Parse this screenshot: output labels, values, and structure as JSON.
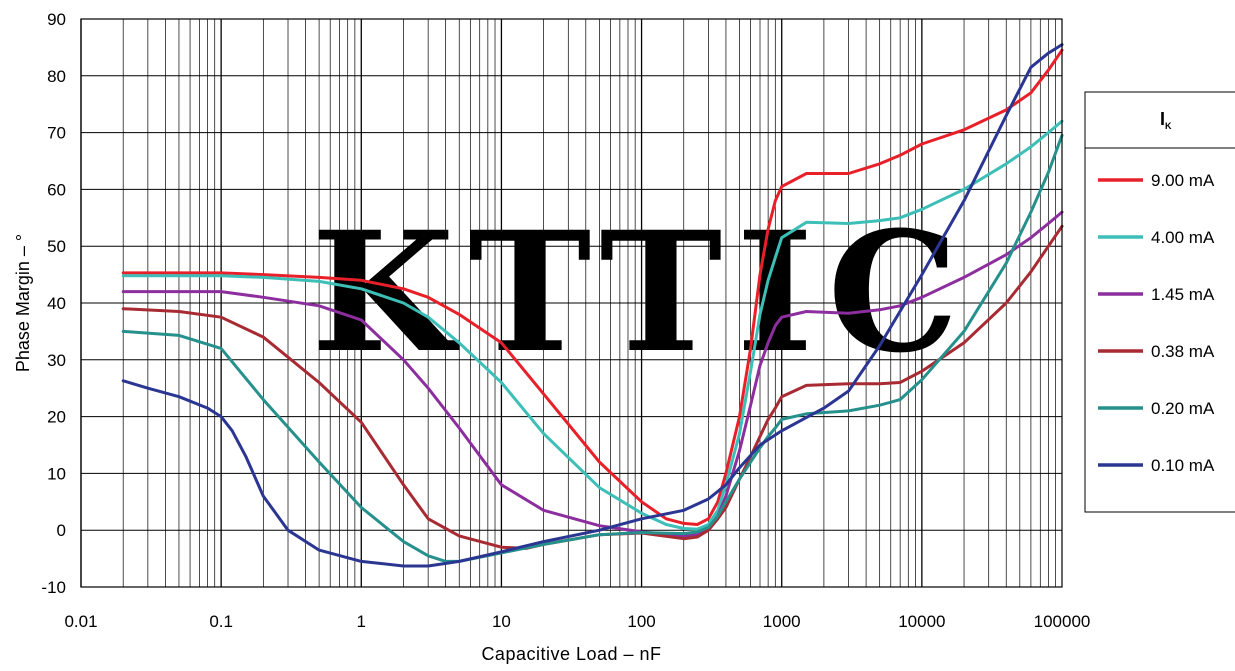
{
  "chart_data": {
    "type": "line",
    "title": "",
    "xlabel": "Capacitive Load – nF",
    "ylabel": "Phase Margin – °",
    "x_scale": "log",
    "xlim": [
      0.01,
      100000
    ],
    "ylim": [
      -10,
      90
    ],
    "grid": true,
    "x_ticks": [
      "0.01",
      "0.1",
      "1",
      "10",
      "100",
      "1000",
      "10000",
      "100000"
    ],
    "y_ticks": [
      "-10",
      "0",
      "10",
      "20",
      "30",
      "40",
      "50",
      "60",
      "70",
      "80",
      "90"
    ],
    "legend": {
      "title": "I",
      "title_sub": "K",
      "placement": "right"
    },
    "watermark": "KTTIC",
    "watermark_color": "#f5b3b9",
    "series": [
      {
        "name": "9.00 mA",
        "color": "#e8202a",
        "points": [
          [
            0.02,
            45.3
          ],
          [
            0.05,
            45.3
          ],
          [
            0.1,
            45.3
          ],
          [
            0.2,
            45
          ],
          [
            0.5,
            44.5
          ],
          [
            1,
            44
          ],
          [
            2,
            42.5
          ],
          [
            3,
            41
          ],
          [
            5,
            38
          ],
          [
            10,
            33
          ],
          [
            20,
            24
          ],
          [
            50,
            12
          ],
          [
            100,
            5
          ],
          [
            150,
            2
          ],
          [
            200,
            1.2
          ],
          [
            250,
            1
          ],
          [
            300,
            2
          ],
          [
            350,
            5
          ],
          [
            400,
            10
          ],
          [
            500,
            20
          ],
          [
            600,
            32
          ],
          [
            700,
            45
          ],
          [
            800,
            53
          ],
          [
            900,
            58
          ],
          [
            1000,
            60.5
          ],
          [
            1500,
            62.8
          ],
          [
            3000,
            62.8
          ],
          [
            5000,
            64.5
          ],
          [
            7000,
            66
          ],
          [
            10000,
            68
          ],
          [
            20000,
            70.5
          ],
          [
            40000,
            74
          ],
          [
            60000,
            77
          ],
          [
            80000,
            81
          ],
          [
            100000,
            84.5
          ]
        ]
      },
      {
        "name": "4.00 mA",
        "color": "#3dbfb8",
        "points": [
          [
            0.02,
            44.8
          ],
          [
            0.05,
            44.8
          ],
          [
            0.1,
            44.8
          ],
          [
            0.2,
            44.5
          ],
          [
            0.5,
            43.8
          ],
          [
            1,
            42.5
          ],
          [
            2,
            40
          ],
          [
            3,
            37.5
          ],
          [
            5,
            33
          ],
          [
            10,
            26
          ],
          [
            20,
            17
          ],
          [
            50,
            7.5
          ],
          [
            100,
            3
          ],
          [
            150,
            1
          ],
          [
            200,
            0.3
          ],
          [
            250,
            0.2
          ],
          [
            300,
            1
          ],
          [
            350,
            3.5
          ],
          [
            400,
            8
          ],
          [
            500,
            17
          ],
          [
            600,
            28
          ],
          [
            700,
            38
          ],
          [
            800,
            44
          ],
          [
            900,
            48
          ],
          [
            1000,
            51.5
          ],
          [
            1500,
            54.2
          ],
          [
            3000,
            54
          ],
          [
            5000,
            54.5
          ],
          [
            7000,
            55
          ],
          [
            10000,
            56.5
          ],
          [
            20000,
            60
          ],
          [
            40000,
            64.5
          ],
          [
            60000,
            67.5
          ],
          [
            80000,
            70
          ],
          [
            100000,
            72
          ]
        ]
      },
      {
        "name": "1.45 mA",
        "color": "#8c2e9e",
        "points": [
          [
            0.02,
            42
          ],
          [
            0.05,
            42
          ],
          [
            0.1,
            42
          ],
          [
            0.2,
            41
          ],
          [
            0.5,
            39.5
          ],
          [
            1,
            37
          ],
          [
            2,
            30
          ],
          [
            3,
            25
          ],
          [
            5,
            18
          ],
          [
            10,
            8
          ],
          [
            20,
            3.5
          ],
          [
            50,
            0.8
          ],
          [
            100,
            -0.3
          ],
          [
            200,
            -1
          ],
          [
            250,
            -0.8
          ],
          [
            300,
            0
          ],
          [
            350,
            2.5
          ],
          [
            400,
            6
          ],
          [
            500,
            14
          ],
          [
            600,
            22
          ],
          [
            700,
            29
          ],
          [
            800,
            33
          ],
          [
            900,
            36
          ],
          [
            1000,
            37.5
          ],
          [
            1500,
            38.5
          ],
          [
            3000,
            38.2
          ],
          [
            5000,
            38.8
          ],
          [
            7000,
            39.5
          ],
          [
            10000,
            41
          ],
          [
            20000,
            44.5
          ],
          [
            40000,
            48.5
          ],
          [
            60000,
            51.5
          ],
          [
            80000,
            54
          ],
          [
            100000,
            56
          ]
        ]
      },
      {
        "name": "0.38 mA",
        "color": "#a82a32",
        "points": [
          [
            0.02,
            39
          ],
          [
            0.05,
            38.5
          ],
          [
            0.1,
            37.5
          ],
          [
            0.2,
            34
          ],
          [
            0.5,
            26
          ],
          [
            1,
            19
          ],
          [
            2,
            8
          ],
          [
            3,
            2
          ],
          [
            5,
            -1
          ],
          [
            10,
            -3
          ],
          [
            15,
            -3.2
          ],
          [
            20,
            -2.5
          ],
          [
            50,
            -0.8
          ],
          [
            100,
            -0.5
          ],
          [
            200,
            -1.5
          ],
          [
            250,
            -1.2
          ],
          [
            300,
            0
          ],
          [
            350,
            2
          ],
          [
            400,
            4
          ],
          [
            500,
            9
          ],
          [
            600,
            13
          ],
          [
            700,
            16.5
          ],
          [
            800,
            19.5
          ],
          [
            900,
            21.5
          ],
          [
            1000,
            23.5
          ],
          [
            1500,
            25.5
          ],
          [
            3000,
            25.8
          ],
          [
            5000,
            25.8
          ],
          [
            7000,
            26
          ],
          [
            10000,
            28
          ],
          [
            20000,
            33
          ],
          [
            40000,
            40
          ],
          [
            60000,
            45.5
          ],
          [
            80000,
            50
          ],
          [
            100000,
            53.5
          ]
        ]
      },
      {
        "name": "0.20 mA",
        "color": "#26908c",
        "points": [
          [
            0.02,
            35
          ],
          [
            0.05,
            34.3
          ],
          [
            0.1,
            32
          ],
          [
            0.2,
            23
          ],
          [
            0.5,
            12
          ],
          [
            1,
            4
          ],
          [
            2,
            -2
          ],
          [
            3,
            -4.5
          ],
          [
            4,
            -5.5
          ],
          [
            5,
            -5.5
          ],
          [
            10,
            -4
          ],
          [
            20,
            -2.5
          ],
          [
            50,
            -0.8
          ],
          [
            100,
            -0.4
          ],
          [
            200,
            -0.6
          ],
          [
            250,
            -0.3
          ],
          [
            300,
            0.5
          ],
          [
            350,
            2.5
          ],
          [
            400,
            5
          ],
          [
            500,
            9
          ],
          [
            600,
            12
          ],
          [
            700,
            14.5
          ],
          [
            800,
            16.5
          ],
          [
            900,
            18
          ],
          [
            1000,
            19.5
          ],
          [
            1500,
            20.5
          ],
          [
            3000,
            21
          ],
          [
            5000,
            22
          ],
          [
            7000,
            23
          ],
          [
            10000,
            26.5
          ],
          [
            20000,
            35
          ],
          [
            40000,
            47
          ],
          [
            60000,
            56
          ],
          [
            80000,
            63
          ],
          [
            100000,
            69.5
          ]
        ]
      },
      {
        "name": "0.10 mA",
        "color": "#2b3592",
        "points": [
          [
            0.02,
            26.3
          ],
          [
            0.03,
            25
          ],
          [
            0.05,
            23.5
          ],
          [
            0.08,
            21.5
          ],
          [
            0.1,
            20
          ],
          [
            0.12,
            17.5
          ],
          [
            0.15,
            13
          ],
          [
            0.2,
            6
          ],
          [
            0.3,
            0
          ],
          [
            0.5,
            -3.5
          ],
          [
            1,
            -5.5
          ],
          [
            2,
            -6.3
          ],
          [
            3,
            -6.3
          ],
          [
            5,
            -5.5
          ],
          [
            10,
            -3.8
          ],
          [
            20,
            -2
          ],
          [
            50,
            0
          ],
          [
            100,
            2
          ],
          [
            200,
            3.5
          ],
          [
            300,
            5.5
          ],
          [
            400,
            8
          ],
          [
            500,
            11
          ],
          [
            700,
            15
          ],
          [
            1000,
            17.5
          ],
          [
            2000,
            21.5
          ],
          [
            3000,
            24.5
          ],
          [
            5000,
            32.5
          ],
          [
            10000,
            45
          ],
          [
            20000,
            58
          ],
          [
            40000,
            73
          ],
          [
            60000,
            81.5
          ],
          [
            80000,
            84
          ],
          [
            100000,
            85.5
          ]
        ]
      }
    ]
  }
}
